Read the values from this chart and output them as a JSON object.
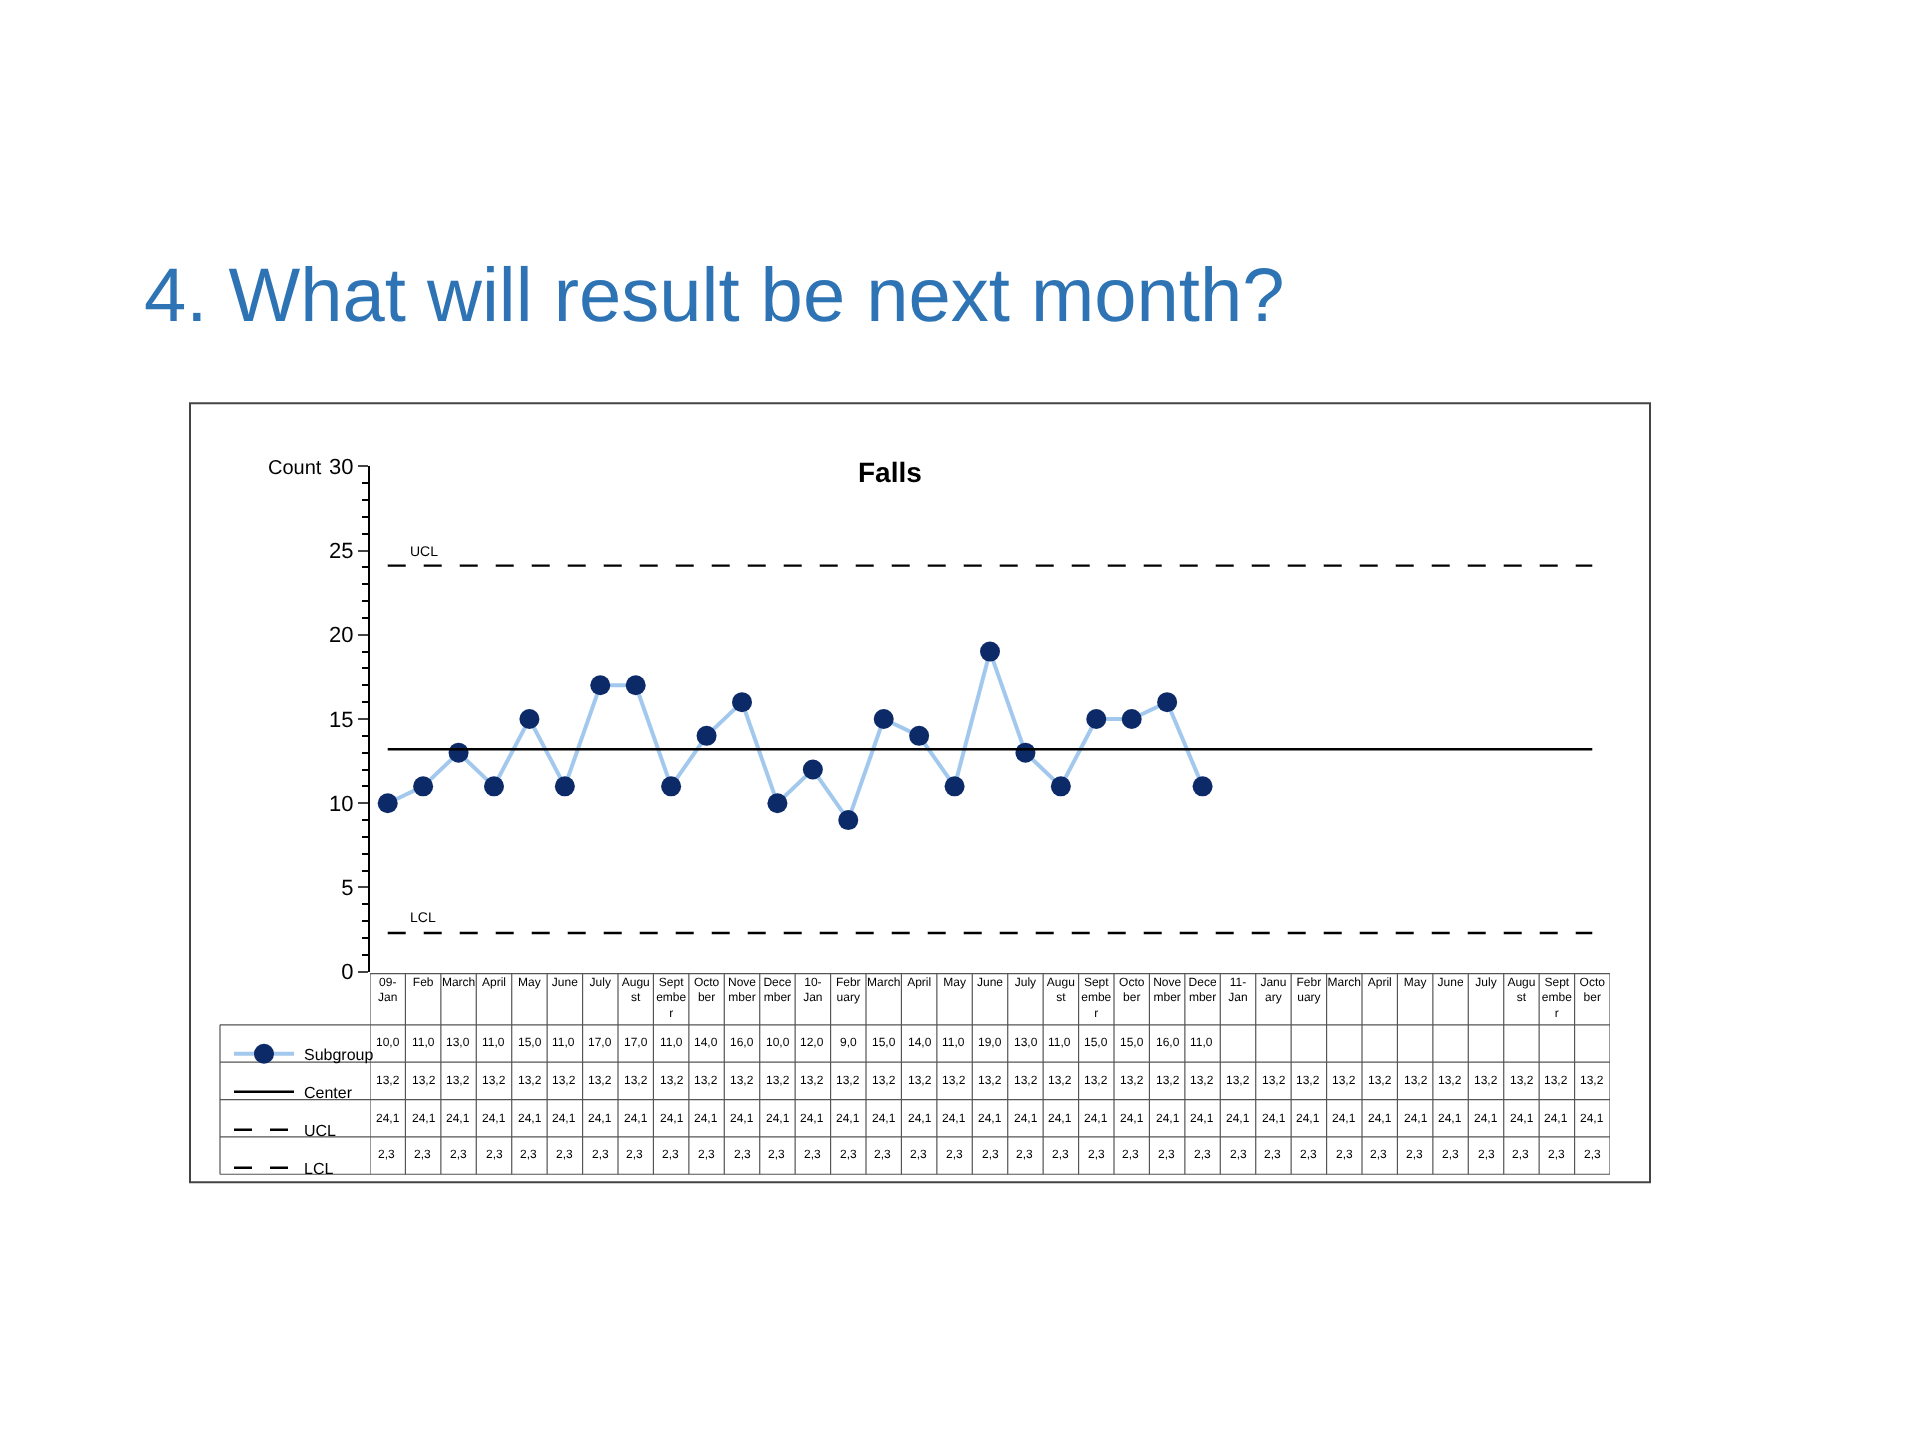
{
  "chart_data": {
    "type": "line",
    "title": "4. What will result be next month?",
    "subtitle": "Falls",
    "ylabel": "Count",
    "categories": [
      "09-Jan",
      "Feb",
      "March",
      "April",
      "May",
      "June",
      "July",
      "August",
      "September",
      "October",
      "November",
      "December",
      "10-Jan",
      "February",
      "March",
      "April",
      "May",
      "June",
      "July",
      "August",
      "September",
      "October",
      "November",
      "December",
      "11-Jan",
      "January",
      "February",
      "March",
      "April",
      "May",
      "June",
      "July",
      "August",
      "September",
      "October"
    ],
    "series": [
      {
        "name": "Subgroup",
        "color": "#a3c8ee",
        "colors": [
          "#0c2a68",
          "#0c2a68",
          "#0c2a68",
          "#0c2a68",
          "#0c2a68",
          "#0c2a68",
          "#0c2a68",
          "#0c2a68",
          "#0c2a68",
          "#0c2a68",
          "#0c2a68",
          "#0c2a68",
          "#0c2a68",
          "#0c2a68",
          "#0c2a68",
          "#0c2a68",
          "#0c2a68",
          "#0c2a68",
          "#0c2a68",
          "#0c2a68",
          "#0c2a68",
          "#0c2a68",
          "#0c2a68",
          "#0c2a68",
          "#0c2a68",
          "#0c2a68",
          "#0c2a68",
          "#0c2a68",
          "#0c2a68",
          "#0c2a68",
          "#0c2a68",
          "#0c2a68",
          "#0c2a68",
          "#0c2a68",
          "#0c2a68"
        ],
        "marker": "circle",
        "line_style": "solid",
        "values": [
          10,
          11,
          13,
          11,
          15,
          11,
          17,
          17,
          11,
          14,
          16,
          10,
          12,
          9,
          15,
          14,
          11,
          19,
          13,
          11,
          15,
          15,
          16,
          11,
          null,
          null,
          null,
          null,
          null,
          null,
          null,
          null,
          null,
          null,
          null
        ],
        "value_labels": [
          "10,0",
          "11,0",
          "13,0",
          "11,0",
          "15,0",
          "11,0",
          "17,0",
          "17,0",
          "11,0",
          "14,0",
          "16,0",
          "10,0",
          "12,0",
          "9,0",
          "15,0",
          "14,0",
          "11,0",
          "19,0",
          "13,0",
          "11,0",
          "15,0",
          "15,0",
          "16,0",
          "11,0",
          null,
          null,
          null,
          null,
          null,
          null,
          null,
          null,
          null,
          null,
          null
        ]
      },
      {
        "name": "Center",
        "color": "#000000",
        "marker": "none",
        "line_style": "solid",
        "values": [
          13.2,
          13.2,
          13.2,
          13.2,
          13.2,
          13.2,
          13.2,
          13.2,
          13.2,
          13.2,
          13.2,
          13.2,
          13.2,
          13.2,
          13.2,
          13.2,
          13.2,
          13.2,
          13.2,
          13.2,
          13.2,
          13.2,
          13.2,
          13.2,
          13.2,
          13.2,
          13.2,
          13.2,
          13.2,
          13.2,
          13.2,
          13.2,
          13.2,
          13.2,
          13.2
        ],
        "value_labels": [
          "13,2",
          "13,2",
          "13,2",
          "13,2",
          "13,2",
          "13,2",
          "13,2",
          "13,2",
          "13,2",
          "13,2",
          "13,2",
          "13,2",
          "13,2",
          "13,2",
          "13,2",
          "13,2",
          "13,2",
          "13,2",
          "13,2",
          "13,2",
          "13,2",
          "13,2",
          "13,2",
          "13,2",
          "13,2",
          "13,2",
          "13,2",
          "13,2",
          "13,2",
          "13,2",
          "13,2",
          "13,2",
          "13,2",
          "13,2",
          "13,2"
        ]
      },
      {
        "name": "UCL",
        "color": "#000000",
        "marker": "none",
        "line_style": "dashed",
        "values": [
          24.1,
          24.1,
          24.1,
          24.1,
          24.1,
          24.1,
          24.1,
          24.1,
          24.1,
          24.1,
          24.1,
          24.1,
          24.1,
          24.1,
          24.1,
          24.1,
          24.1,
          24.1,
          24.1,
          24.1,
          24.1,
          24.1,
          24.1,
          24.1,
          24.1,
          24.1,
          24.1,
          24.1,
          24.1,
          24.1,
          24.1,
          24.1,
          24.1,
          24.1,
          24.1
        ],
        "value_labels": [
          "24,1",
          "24,1",
          "24,1",
          "24,1",
          "24,1",
          "24,1",
          "24,1",
          "24,1",
          "24,1",
          "24,1",
          "24,1",
          "24,1",
          "24,1",
          "24,1",
          "24,1",
          "24,1",
          "24,1",
          "24,1",
          "24,1",
          "24,1",
          "24,1",
          "24,1",
          "24,1",
          "24,1",
          "24,1",
          "24,1",
          "24,1",
          "24,1",
          "24,1",
          "24,1",
          "24,1",
          "24,1",
          "24,1",
          "24,1",
          "24,1"
        ]
      },
      {
        "name": "LCL",
        "color": "#000000",
        "marker": "none",
        "line_style": "dashed",
        "values": [
          2.3,
          2.3,
          2.3,
          2.3,
          2.3,
          2.3,
          2.3,
          2.3,
          2.3,
          2.3,
          2.3,
          2.3,
          2.3,
          2.3,
          2.3,
          2.3,
          2.3,
          2.3,
          2.3,
          2.3,
          2.3,
          2.3,
          2.3,
          2.3,
          2.3,
          2.3,
          2.3,
          2.3,
          2.3,
          2.3,
          2.3,
          2.3,
          2.3,
          2.3,
          2.3
        ],
        "value_labels": [
          "2,3",
          "2,3",
          "2,3",
          "2,3",
          "2,3",
          "2,3",
          "2,3",
          "2,3",
          "2,3",
          "2,3",
          "2,3",
          "2,3",
          "2,3",
          "2,3",
          "2,3",
          "2,3",
          "2,3",
          "2,3",
          "2,3",
          "2,3",
          "2,3",
          "2,3",
          "2,3",
          "2,3",
          "2,3",
          "2,3",
          "2,3",
          "2,3",
          "2,3",
          "2,3",
          "2,3",
          "2,3",
          "2,3",
          "2,3",
          "2,3"
        ]
      }
    ],
    "ylim": [
      0,
      30
    ],
    "yticks": [
      0,
      5,
      10,
      15,
      20,
      25,
      30
    ],
    "legend": "bottom left"
  }
}
